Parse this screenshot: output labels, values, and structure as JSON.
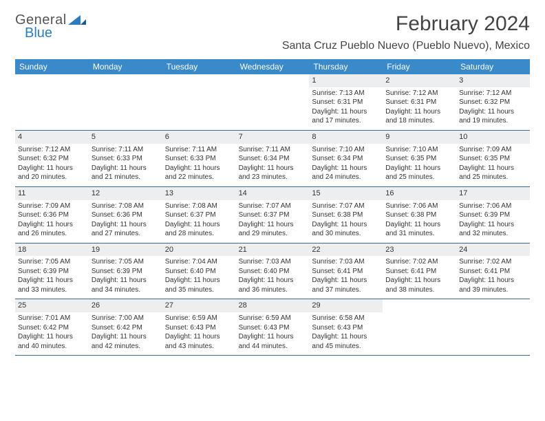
{
  "brand": {
    "top": "General",
    "bottom": "Blue"
  },
  "title": "February 2024",
  "location": "Santa Cruz Pueblo Nuevo (Pueblo Nuevo), Mexico",
  "colors": {
    "header_bg": "#3a89c9",
    "header_text": "#ffffff",
    "row_border": "#3a6a94",
    "daynum_bg": "#eceef0",
    "text": "#333333",
    "brand_accent": "#2b7bbf"
  },
  "day_headers": [
    "Sunday",
    "Monday",
    "Tuesday",
    "Wednesday",
    "Thursday",
    "Friday",
    "Saturday"
  ],
  "weeks": [
    [
      {
        "day": "",
        "sunrise": "",
        "sunset": "",
        "daylight1": "",
        "daylight2": ""
      },
      {
        "day": "",
        "sunrise": "",
        "sunset": "",
        "daylight1": "",
        "daylight2": ""
      },
      {
        "day": "",
        "sunrise": "",
        "sunset": "",
        "daylight1": "",
        "daylight2": ""
      },
      {
        "day": "",
        "sunrise": "",
        "sunset": "",
        "daylight1": "",
        "daylight2": ""
      },
      {
        "day": "1",
        "sunrise": "Sunrise: 7:13 AM",
        "sunset": "Sunset: 6:31 PM",
        "daylight1": "Daylight: 11 hours",
        "daylight2": "and 17 minutes."
      },
      {
        "day": "2",
        "sunrise": "Sunrise: 7:12 AM",
        "sunset": "Sunset: 6:31 PM",
        "daylight1": "Daylight: 11 hours",
        "daylight2": "and 18 minutes."
      },
      {
        "day": "3",
        "sunrise": "Sunrise: 7:12 AM",
        "sunset": "Sunset: 6:32 PM",
        "daylight1": "Daylight: 11 hours",
        "daylight2": "and 19 minutes."
      }
    ],
    [
      {
        "day": "4",
        "sunrise": "Sunrise: 7:12 AM",
        "sunset": "Sunset: 6:32 PM",
        "daylight1": "Daylight: 11 hours",
        "daylight2": "and 20 minutes."
      },
      {
        "day": "5",
        "sunrise": "Sunrise: 7:11 AM",
        "sunset": "Sunset: 6:33 PM",
        "daylight1": "Daylight: 11 hours",
        "daylight2": "and 21 minutes."
      },
      {
        "day": "6",
        "sunrise": "Sunrise: 7:11 AM",
        "sunset": "Sunset: 6:33 PM",
        "daylight1": "Daylight: 11 hours",
        "daylight2": "and 22 minutes."
      },
      {
        "day": "7",
        "sunrise": "Sunrise: 7:11 AM",
        "sunset": "Sunset: 6:34 PM",
        "daylight1": "Daylight: 11 hours",
        "daylight2": "and 23 minutes."
      },
      {
        "day": "8",
        "sunrise": "Sunrise: 7:10 AM",
        "sunset": "Sunset: 6:34 PM",
        "daylight1": "Daylight: 11 hours",
        "daylight2": "and 24 minutes."
      },
      {
        "day": "9",
        "sunrise": "Sunrise: 7:10 AM",
        "sunset": "Sunset: 6:35 PM",
        "daylight1": "Daylight: 11 hours",
        "daylight2": "and 25 minutes."
      },
      {
        "day": "10",
        "sunrise": "Sunrise: 7:09 AM",
        "sunset": "Sunset: 6:35 PM",
        "daylight1": "Daylight: 11 hours",
        "daylight2": "and 25 minutes."
      }
    ],
    [
      {
        "day": "11",
        "sunrise": "Sunrise: 7:09 AM",
        "sunset": "Sunset: 6:36 PM",
        "daylight1": "Daylight: 11 hours",
        "daylight2": "and 26 minutes."
      },
      {
        "day": "12",
        "sunrise": "Sunrise: 7:08 AM",
        "sunset": "Sunset: 6:36 PM",
        "daylight1": "Daylight: 11 hours",
        "daylight2": "and 27 minutes."
      },
      {
        "day": "13",
        "sunrise": "Sunrise: 7:08 AM",
        "sunset": "Sunset: 6:37 PM",
        "daylight1": "Daylight: 11 hours",
        "daylight2": "and 28 minutes."
      },
      {
        "day": "14",
        "sunrise": "Sunrise: 7:07 AM",
        "sunset": "Sunset: 6:37 PM",
        "daylight1": "Daylight: 11 hours",
        "daylight2": "and 29 minutes."
      },
      {
        "day": "15",
        "sunrise": "Sunrise: 7:07 AM",
        "sunset": "Sunset: 6:38 PM",
        "daylight1": "Daylight: 11 hours",
        "daylight2": "and 30 minutes."
      },
      {
        "day": "16",
        "sunrise": "Sunrise: 7:06 AM",
        "sunset": "Sunset: 6:38 PM",
        "daylight1": "Daylight: 11 hours",
        "daylight2": "and 31 minutes."
      },
      {
        "day": "17",
        "sunrise": "Sunrise: 7:06 AM",
        "sunset": "Sunset: 6:39 PM",
        "daylight1": "Daylight: 11 hours",
        "daylight2": "and 32 minutes."
      }
    ],
    [
      {
        "day": "18",
        "sunrise": "Sunrise: 7:05 AM",
        "sunset": "Sunset: 6:39 PM",
        "daylight1": "Daylight: 11 hours",
        "daylight2": "and 33 minutes."
      },
      {
        "day": "19",
        "sunrise": "Sunrise: 7:05 AM",
        "sunset": "Sunset: 6:39 PM",
        "daylight1": "Daylight: 11 hours",
        "daylight2": "and 34 minutes."
      },
      {
        "day": "20",
        "sunrise": "Sunrise: 7:04 AM",
        "sunset": "Sunset: 6:40 PM",
        "daylight1": "Daylight: 11 hours",
        "daylight2": "and 35 minutes."
      },
      {
        "day": "21",
        "sunrise": "Sunrise: 7:03 AM",
        "sunset": "Sunset: 6:40 PM",
        "daylight1": "Daylight: 11 hours",
        "daylight2": "and 36 minutes."
      },
      {
        "day": "22",
        "sunrise": "Sunrise: 7:03 AM",
        "sunset": "Sunset: 6:41 PM",
        "daylight1": "Daylight: 11 hours",
        "daylight2": "and 37 minutes."
      },
      {
        "day": "23",
        "sunrise": "Sunrise: 7:02 AM",
        "sunset": "Sunset: 6:41 PM",
        "daylight1": "Daylight: 11 hours",
        "daylight2": "and 38 minutes."
      },
      {
        "day": "24",
        "sunrise": "Sunrise: 7:02 AM",
        "sunset": "Sunset: 6:41 PM",
        "daylight1": "Daylight: 11 hours",
        "daylight2": "and 39 minutes."
      }
    ],
    [
      {
        "day": "25",
        "sunrise": "Sunrise: 7:01 AM",
        "sunset": "Sunset: 6:42 PM",
        "daylight1": "Daylight: 11 hours",
        "daylight2": "and 40 minutes."
      },
      {
        "day": "26",
        "sunrise": "Sunrise: 7:00 AM",
        "sunset": "Sunset: 6:42 PM",
        "daylight1": "Daylight: 11 hours",
        "daylight2": "and 42 minutes."
      },
      {
        "day": "27",
        "sunrise": "Sunrise: 6:59 AM",
        "sunset": "Sunset: 6:43 PM",
        "daylight1": "Daylight: 11 hours",
        "daylight2": "and 43 minutes."
      },
      {
        "day": "28",
        "sunrise": "Sunrise: 6:59 AM",
        "sunset": "Sunset: 6:43 PM",
        "daylight1": "Daylight: 11 hours",
        "daylight2": "and 44 minutes."
      },
      {
        "day": "29",
        "sunrise": "Sunrise: 6:58 AM",
        "sunset": "Sunset: 6:43 PM",
        "daylight1": "Daylight: 11 hours",
        "daylight2": "and 45 minutes."
      },
      {
        "day": "",
        "sunrise": "",
        "sunset": "",
        "daylight1": "",
        "daylight2": ""
      },
      {
        "day": "",
        "sunrise": "",
        "sunset": "",
        "daylight1": "",
        "daylight2": ""
      }
    ]
  ]
}
